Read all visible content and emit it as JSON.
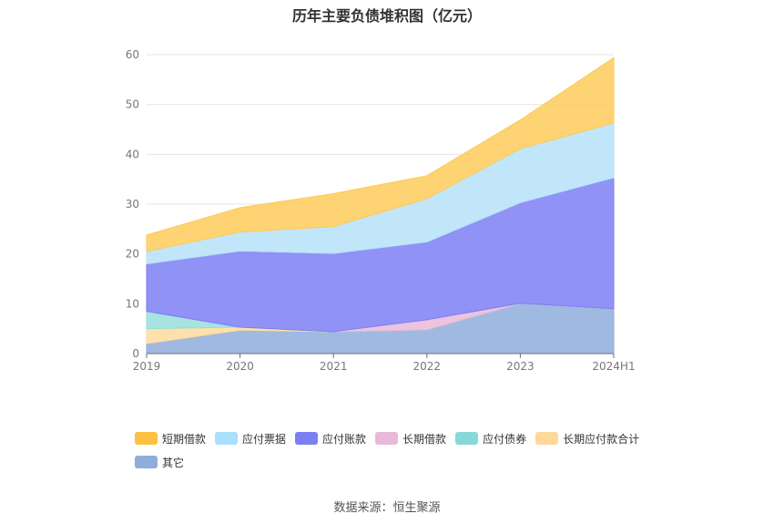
{
  "title": "历年主要负债堆积图（亿元）",
  "source": "数据来源：恒生聚源",
  "chart_data": {
    "type": "area",
    "stacked": true,
    "categories": [
      "2019",
      "2020",
      "2021",
      "2022",
      "2023",
      "2024H1"
    ],
    "ylim": [
      0,
      60
    ],
    "yticks": [
      0,
      10,
      20,
      30,
      40,
      50,
      60
    ],
    "grid": true,
    "legend_position": "bottom",
    "series": [
      {
        "name": "其它",
        "color": "#8faddb",
        "values": [
          2.0,
          4.7,
          4.4,
          4.8,
          10.1,
          9.0
        ]
      },
      {
        "name": "长期应付款合计",
        "color": "#fddb9e",
        "values": [
          3.0,
          0.6,
          0.0,
          0.0,
          0.0,
          0.0
        ]
      },
      {
        "name": "应付债券",
        "color": "#96dedc",
        "values": [
          3.5,
          0.0,
          0.0,
          0.0,
          0.0,
          0.0
        ]
      },
      {
        "name": "长期借款",
        "color": "#e9bad8",
        "values": [
          0.0,
          0.0,
          0.0,
          2.0,
          0.0,
          0.0
        ]
      },
      {
        "name": "应付账款",
        "color": "#7e7ff5",
        "values": [
          9.5,
          15.3,
          15.7,
          15.6,
          20.2,
          26.3
        ]
      },
      {
        "name": "应付票据",
        "color": "#b6e2f9",
        "values": [
          2.5,
          3.8,
          5.4,
          8.7,
          10.8,
          11.0
        ]
      },
      {
        "name": "短期借款",
        "color": "#fdcb5a",
        "values": [
          3.3,
          4.9,
          6.6,
          4.6,
          5.8,
          13.1
        ]
      }
    ],
    "legend_order": [
      "短期借款",
      "应付票据",
      "应付账款",
      "长期借款",
      "应付债券",
      "长期应付款合计",
      "其它"
    ],
    "legend_colors": {
      "短期借款": "#fcc13e",
      "应付票据": "#a9e0fb",
      "应付账款": "#7c7ff2",
      "长期借款": "#e8b9d8",
      "应付债券": "#87d8d8",
      "长期应付款合计": "#fdd89a",
      "其它": "#8faddb"
    }
  }
}
